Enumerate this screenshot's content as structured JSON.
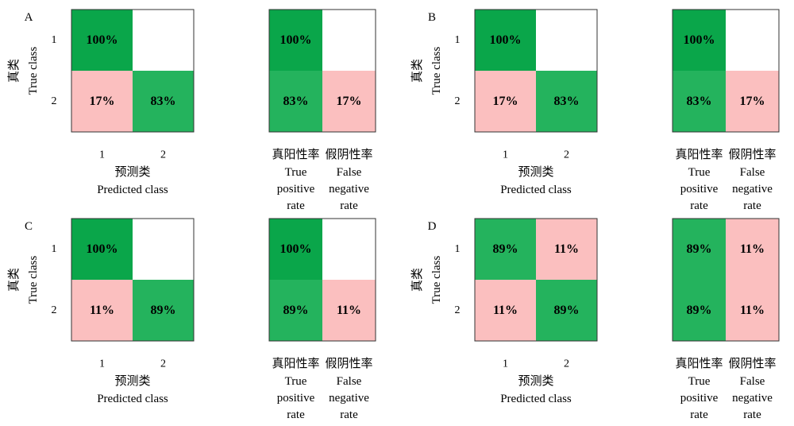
{
  "labels": {
    "y_axis_cn": "真类",
    "y_axis_en": "True class",
    "x_axis_cn": "预测类",
    "x_axis_en": "Predicted class",
    "tpr_cn": "真阳性率",
    "tpr_en": [
      "True",
      "positive",
      "rate"
    ],
    "fnr_cn": "假阴性率",
    "fnr_en": [
      "False",
      "negative",
      "rate"
    ]
  },
  "colors": {
    "dark_green": "#0aa64a",
    "green": "#24b35d",
    "pink": "#fbbfbf",
    "white": "#ffffff",
    "border": "#333333"
  },
  "chart_data": [
    {
      "panel": "A",
      "type": "heatmap",
      "ylabel": "真类 True class",
      "xlabel": "预测类 Predicted class",
      "row_labels": [
        "1",
        "2"
      ],
      "col_labels": [
        "1",
        "2"
      ],
      "confusion": [
        [
          "100%",
          ""
        ],
        [
          "17%",
          "83%"
        ]
      ],
      "confusion_colors": [
        [
          "dark_green",
          "white"
        ],
        [
          "pink",
          "green"
        ]
      ],
      "rate_cols": [
        "真阳性率 True positive rate",
        "假阴性率 False negative rate"
      ],
      "rates": [
        [
          "100%",
          ""
        ],
        [
          "83%",
          "17%"
        ]
      ],
      "rate_colors": [
        [
          "dark_green",
          "white"
        ],
        [
          "green",
          "pink"
        ]
      ]
    },
    {
      "panel": "B",
      "type": "heatmap",
      "ylabel": "真类 True class",
      "xlabel": "预测类 Predicted class",
      "row_labels": [
        "1",
        "2"
      ],
      "col_labels": [
        "1",
        "2"
      ],
      "confusion": [
        [
          "100%",
          ""
        ],
        [
          "17%",
          "83%"
        ]
      ],
      "confusion_colors": [
        [
          "dark_green",
          "white"
        ],
        [
          "pink",
          "green"
        ]
      ],
      "rate_cols": [
        "真阳性率 True positive rate",
        "假阴性率 False negative rate"
      ],
      "rates": [
        [
          "100%",
          ""
        ],
        [
          "83%",
          "17%"
        ]
      ],
      "rate_colors": [
        [
          "dark_green",
          "white"
        ],
        [
          "green",
          "pink"
        ]
      ]
    },
    {
      "panel": "C",
      "type": "heatmap",
      "ylabel": "真类 True class",
      "xlabel": "预测类 Predicted class",
      "row_labels": [
        "1",
        "2"
      ],
      "col_labels": [
        "1",
        "2"
      ],
      "confusion": [
        [
          "100%",
          ""
        ],
        [
          "11%",
          "89%"
        ]
      ],
      "confusion_colors": [
        [
          "dark_green",
          "white"
        ],
        [
          "pink",
          "green"
        ]
      ],
      "rate_cols": [
        "真阳性率 True positive rate",
        "假阴性率 False negative rate"
      ],
      "rates": [
        [
          "100%",
          ""
        ],
        [
          "89%",
          "11%"
        ]
      ],
      "rate_colors": [
        [
          "dark_green",
          "white"
        ],
        [
          "green",
          "pink"
        ]
      ]
    },
    {
      "panel": "D",
      "type": "heatmap",
      "ylabel": "真类 True class",
      "xlabel": "预测类 Predicted class",
      "row_labels": [
        "1",
        "2"
      ],
      "col_labels": [
        "1",
        "2"
      ],
      "confusion": [
        [
          "89%",
          "11%"
        ],
        [
          "11%",
          "89%"
        ]
      ],
      "confusion_colors": [
        [
          "green",
          "pink"
        ],
        [
          "pink",
          "green"
        ]
      ],
      "rate_cols": [
        "真阳性率 True positive rate",
        "假阴性率 False negative rate"
      ],
      "rates": [
        [
          "89%",
          "11%"
        ],
        [
          "89%",
          "11%"
        ]
      ],
      "rate_colors": [
        [
          "green",
          "pink"
        ],
        [
          "green",
          "pink"
        ]
      ]
    }
  ]
}
